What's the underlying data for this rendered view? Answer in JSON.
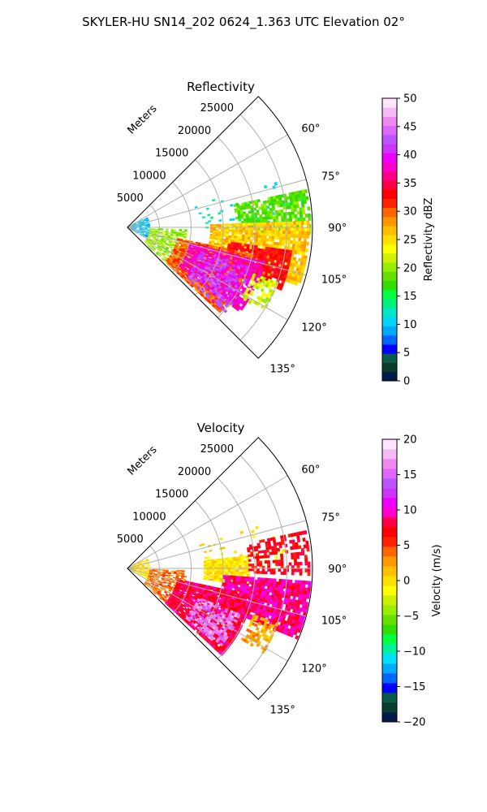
{
  "figure": {
    "title": "SKYLER-HU  SN14_202  0624_1.363 UTC Elevation 02°"
  },
  "chart_data": [
    {
      "type": "polar-sector",
      "title": "Reflectivity",
      "range_label": "Meters",
      "range_ticks": [
        5000,
        10000,
        15000,
        20000,
        25000
      ],
      "range_tick_labels": [
        "5000",
        "10000",
        "15000",
        "20000",
        "25000"
      ],
      "angle_ticks": [
        60,
        75,
        90,
        105,
        120,
        135
      ],
      "angle_tick_labels": [
        "60°",
        "75°",
        "90°",
        "105°",
        "120°",
        "135°"
      ],
      "angle_range": [
        45,
        135
      ],
      "range_max": 29000,
      "colorbar": {
        "label": "Reflectivity dBZ",
        "min": 0,
        "max": 50,
        "ticks": [
          0,
          5,
          10,
          15,
          20,
          25,
          30,
          35,
          40,
          45,
          50
        ],
        "tick_labels": [
          "0",
          "5",
          "10",
          "15",
          "20",
          "25",
          "30",
          "35",
          "40",
          "45",
          "50"
        ],
        "colors": [
          "#001a4a",
          "#0a3d2a",
          "#0a5a4a",
          "#0000ff",
          "#0066ff",
          "#00aaff",
          "#00d4ff",
          "#00e8c8",
          "#00f080",
          "#00ff40",
          "#33dd00",
          "#66e000",
          "#99ee00",
          "#ccf000",
          "#ffff00",
          "#ffe000",
          "#ffc000",
          "#ff9900",
          "#ff6600",
          "#ff2200",
          "#ff0000",
          "#ff0044",
          "#ff0088",
          "#ff00cc",
          "#ee00ff",
          "#cc33ff",
          "#bb55ff",
          "#dd66ff",
          "#ee88ee",
          "#f5bbf5",
          "#fde6fd"
        ]
      },
      "echo_regions": [
        {
          "a0": 62,
          "a1": 118,
          "r0": 0,
          "r1": 3500,
          "level": 10,
          "density": 0.45
        },
        {
          "a0": 92,
          "a1": 132,
          "r0": 3500,
          "r1": 9000,
          "level": 20,
          "density": 0.55
        },
        {
          "a0": 72,
          "a1": 90,
          "r0": 11000,
          "r1": 25000,
          "level": 12,
          "density": 0.06
        },
        {
          "a0": 78,
          "a1": 92,
          "r0": 17000,
          "r1": 28500,
          "level": 18,
          "density": 0.7
        },
        {
          "a0": 88,
          "a1": 108,
          "r0": 13000,
          "r1": 28500,
          "level": 26,
          "density": 0.9
        },
        {
          "a0": 98,
          "a1": 112,
          "r0": 16000,
          "r1": 26000,
          "level": 33,
          "density": 0.85
        },
        {
          "a0": 102,
          "a1": 132,
          "r0": 8000,
          "r1": 20000,
          "level": 30,
          "density": 0.9
        },
        {
          "a0": 104,
          "a1": 126,
          "r0": 10000,
          "r1": 22000,
          "level": 38,
          "density": 0.75
        },
        {
          "a0": 108,
          "a1": 130,
          "r0": 12000,
          "r1": 20000,
          "level": 42,
          "density": 0.45
        },
        {
          "a0": 110,
          "a1": 122,
          "r0": 21000,
          "r1": 25000,
          "level": 22,
          "density": 0.5
        }
      ]
    },
    {
      "type": "polar-sector",
      "title": "Velocity",
      "range_label": "Meters",
      "range_ticks": [
        5000,
        10000,
        15000,
        20000,
        25000
      ],
      "range_tick_labels": [
        "5000",
        "10000",
        "15000",
        "20000",
        "25000"
      ],
      "angle_ticks": [
        60,
        75,
        90,
        105,
        120,
        135
      ],
      "angle_tick_labels": [
        "60°",
        "75°",
        "90°",
        "105°",
        "120°",
        "135°"
      ],
      "angle_range": [
        45,
        135
      ],
      "range_max": 29000,
      "colorbar": {
        "label": "Velocity (m/s)",
        "min": -20,
        "max": 20,
        "ticks": [
          -20,
          -15,
          -10,
          -5,
          0,
          5,
          10,
          15,
          20
        ],
        "tick_labels": [
          "−20",
          "−15",
          "−10",
          "−5",
          "0",
          "5",
          "10",
          "15",
          "20"
        ],
        "colors": [
          "#001a4a",
          "#0a3d2a",
          "#0a5a4a",
          "#0000ff",
          "#0066ff",
          "#00aaff",
          "#00e0ff",
          "#00f0a0",
          "#00ff40",
          "#33dd00",
          "#66e000",
          "#99ee00",
          "#ccf000",
          "#ffff00",
          "#ffe000",
          "#ffc000",
          "#ff9900",
          "#ff6600",
          "#ff2200",
          "#ff0000",
          "#ff0044",
          "#ff00cc",
          "#ee00ff",
          "#cc33ff",
          "#bb55ff",
          "#dd66ff",
          "#ee88ee",
          "#f5bbf5",
          "#fde6fd"
        ]
      },
      "echo_regions": [
        {
          "a0": 62,
          "a1": 118,
          "r0": 0,
          "r1": 3500,
          "level": 0,
          "density": 0.45
        },
        {
          "a0": 92,
          "a1": 132,
          "r0": 3500,
          "r1": 9000,
          "level": 4,
          "density": 0.55
        },
        {
          "a0": 72,
          "a1": 90,
          "r0": 11000,
          "r1": 25000,
          "level": 0,
          "density": 0.06
        },
        {
          "a0": 84,
          "a1": 98,
          "r0": 12000,
          "r1": 19000,
          "level": 0,
          "density": 0.95
        },
        {
          "a0": 78,
          "a1": 92,
          "r0": 19000,
          "r1": 28500,
          "level": 7,
          "density": 0.55
        },
        {
          "a0": 94,
          "a1": 112,
          "r0": 15000,
          "r1": 28500,
          "level": 9,
          "density": 0.9
        },
        {
          "a0": 102,
          "a1": 132,
          "r0": 8000,
          "r1": 20000,
          "level": 8,
          "density": 0.92
        },
        {
          "a0": 112,
          "a1": 130,
          "r0": 12000,
          "r1": 19000,
          "level": 16,
          "density": 0.6
        },
        {
          "a0": 110,
          "a1": 122,
          "r0": 21000,
          "r1": 25000,
          "level": 2,
          "density": 0.5
        }
      ]
    }
  ]
}
